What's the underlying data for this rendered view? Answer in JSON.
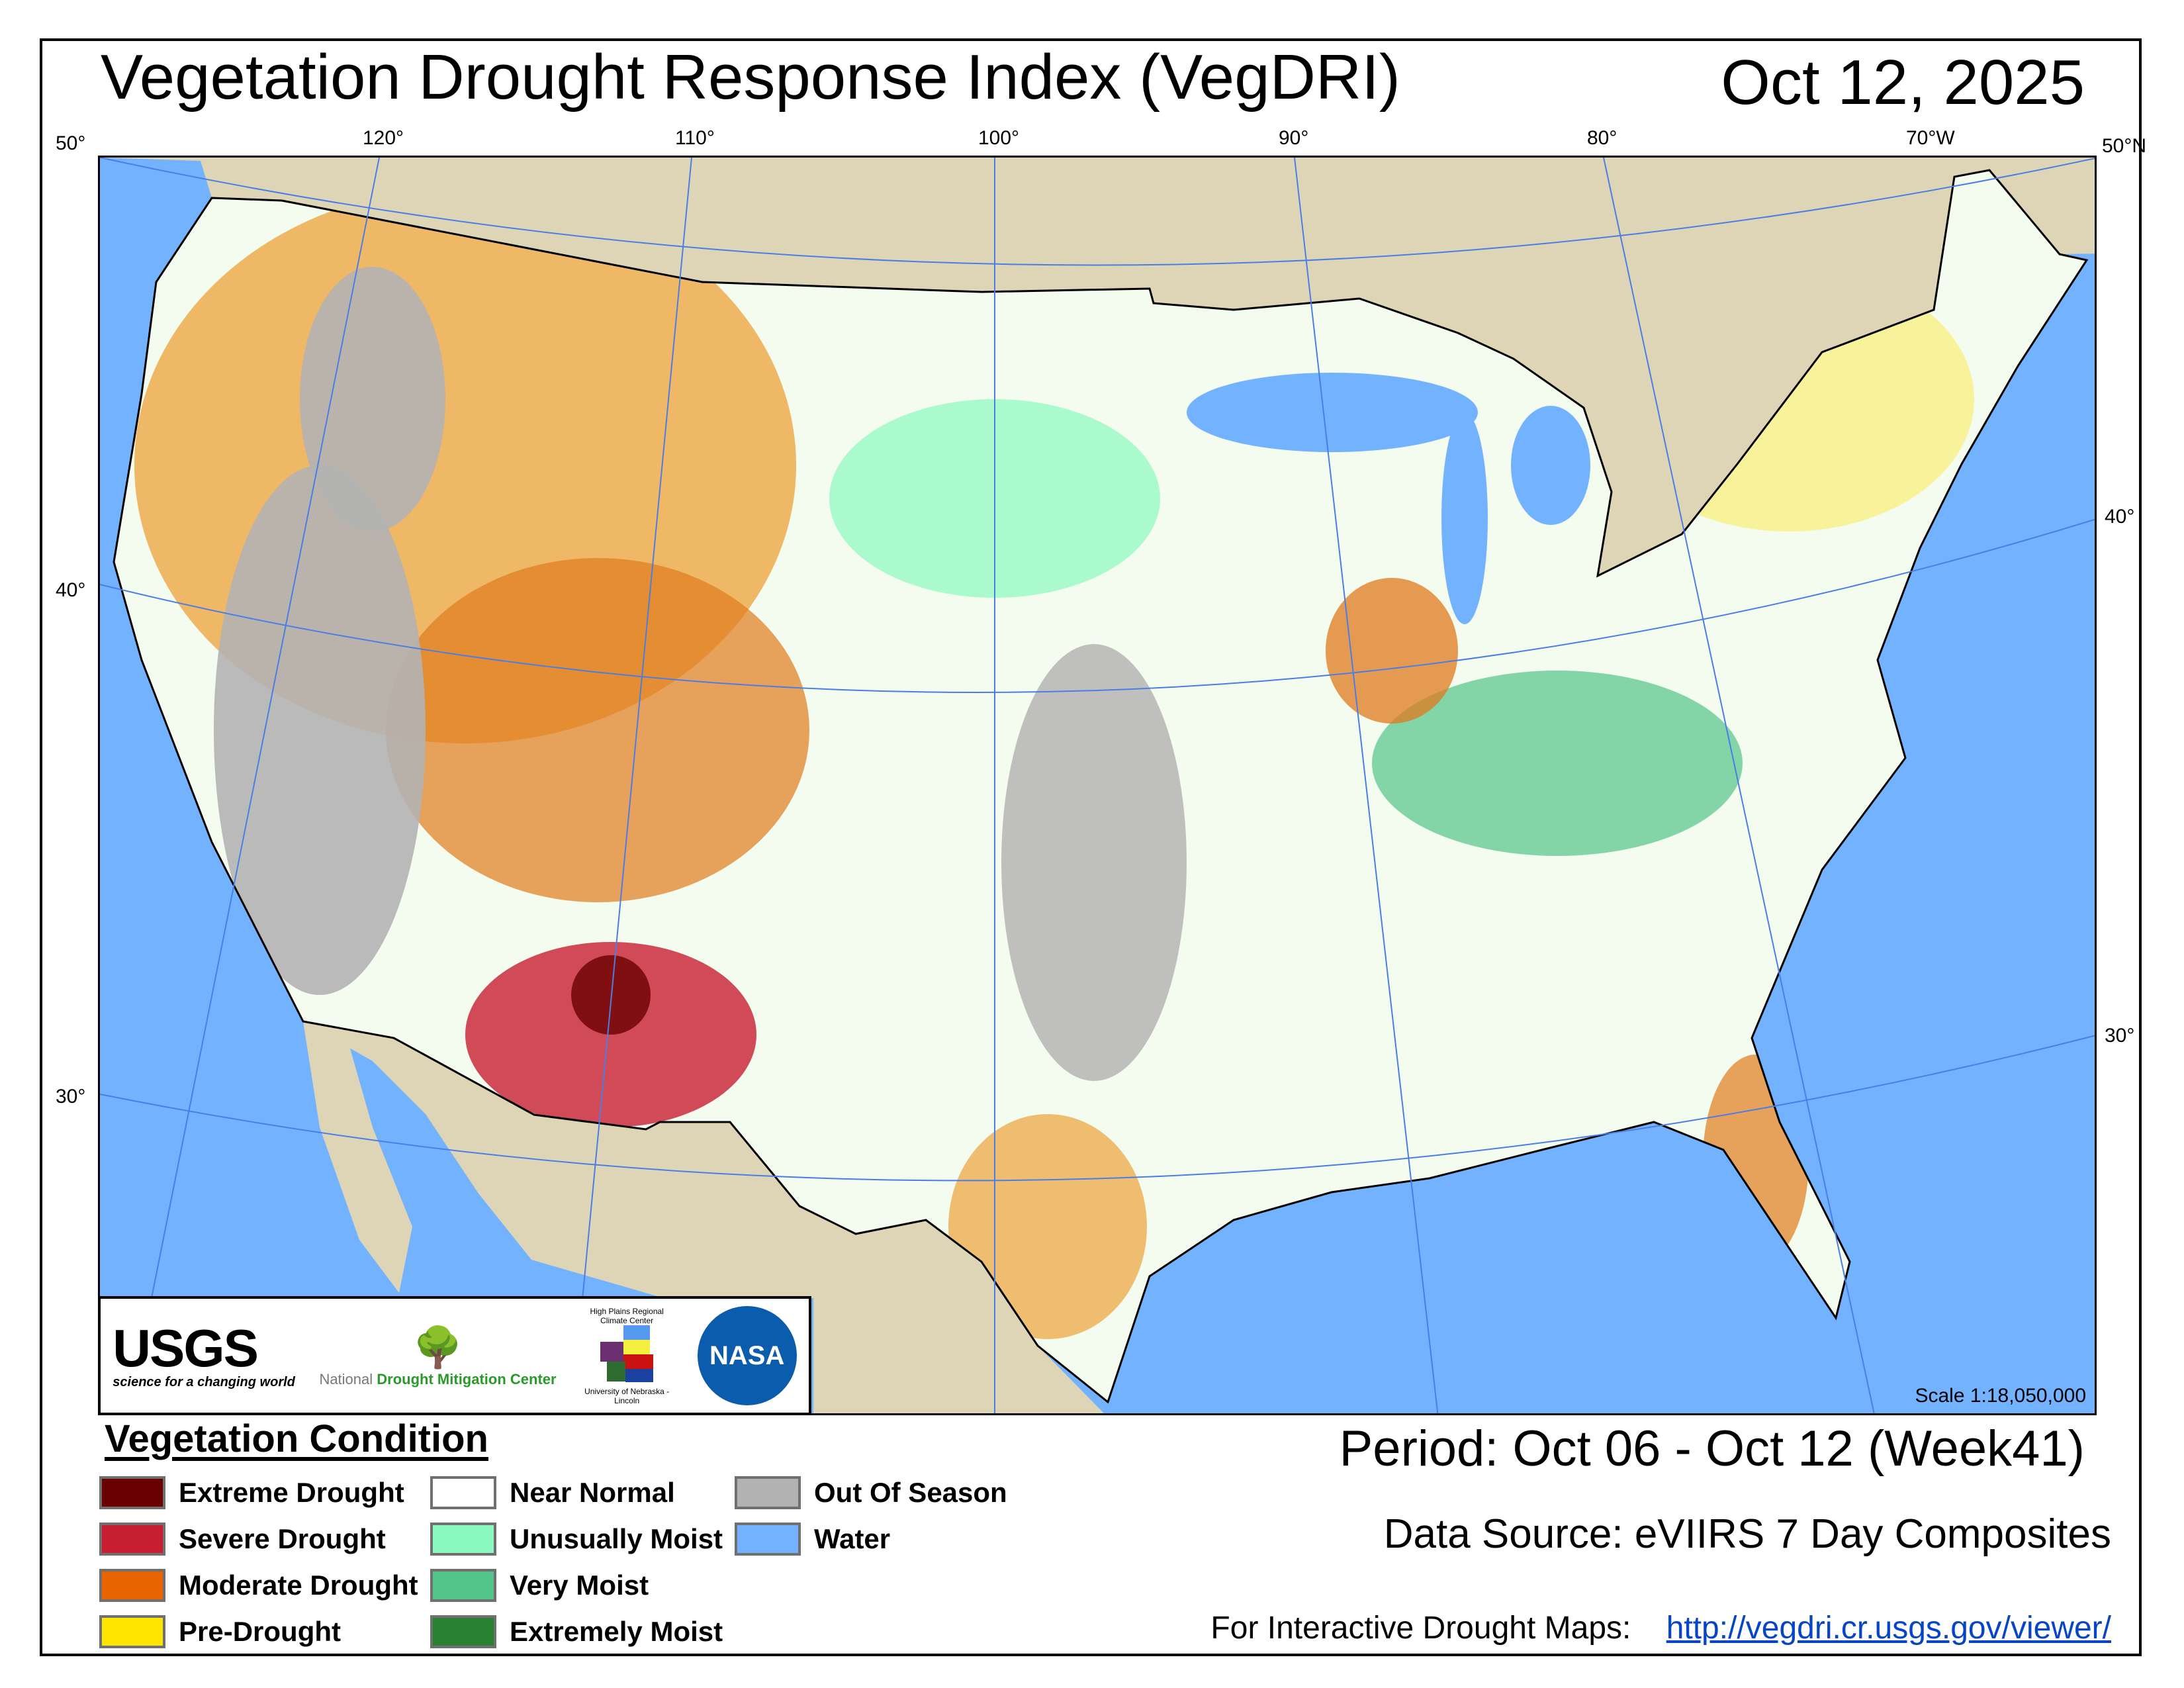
{
  "header": {
    "title": "Vegetation Drought Response Index (VegDRI)",
    "date": "Oct 12, 2025"
  },
  "graticule": {
    "top": [
      "50°",
      "120°",
      "110°",
      "100°",
      "90°",
      "80°",
      "70°W",
      "50°N"
    ],
    "left": [
      "40°",
      "30°"
    ],
    "right": [
      "40°",
      "30°"
    ]
  },
  "map": {
    "scale": "Scale 1:18,050,000",
    "colors": {
      "water": "#73b2ff",
      "foreign_land": "#ddd5b5",
      "boundary": "#000000"
    }
  },
  "logos": {
    "usgs": "USGS",
    "usgs_tagline": "science for a changing world",
    "ndmc_1": "National",
    "ndmc_2": "Drought Mitigation Center",
    "hprcc": "High Plains Regional Climate Center",
    "hprcc_sub": "University of Nebraska - Lincoln",
    "nasa": "NASA"
  },
  "legend": {
    "title": "Vegetation Condition",
    "items": [
      {
        "label": "Extreme Drought",
        "color": "#6b0000"
      },
      {
        "label": "Severe Drought",
        "color": "#c81e32"
      },
      {
        "label": "Moderate Drought",
        "color": "#e86400"
      },
      {
        "label": "Pre-Drought",
        "color": "#ffe600"
      },
      {
        "label": "Near Normal",
        "color": "#ffffff"
      },
      {
        "label": "Unusually Moist",
        "color": "#8afac0"
      },
      {
        "label": "Very Moist",
        "color": "#52c48a"
      },
      {
        "label": "Extremely Moist",
        "color": "#288232"
      },
      {
        "label": "Out Of Season",
        "color": "#b2b2b2"
      },
      {
        "label": "Water",
        "color": "#73b2ff"
      }
    ]
  },
  "info": {
    "period": "Period:  Oct 06 - Oct 12 (Week41)",
    "source": "Data Source:  eVIIRS 7 Day Composites",
    "interactive_label": "For Interactive Drought Maps:",
    "interactive_url": "http://vegdri.cr.usgs.gov/viewer/"
  }
}
